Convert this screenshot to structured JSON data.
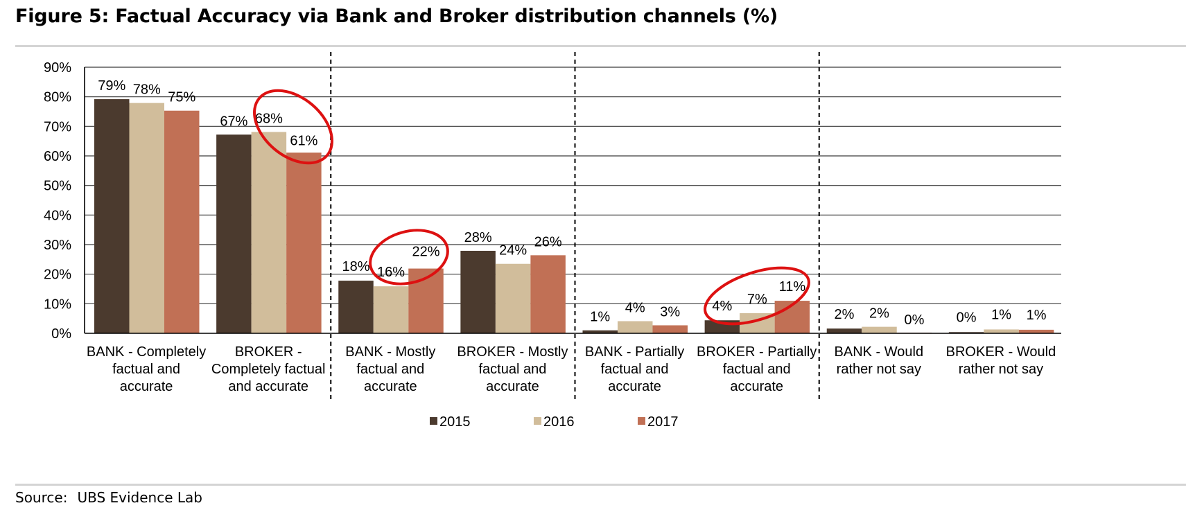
{
  "header": {
    "title": "Figure 5:  Factual Accuracy via Bank and Broker distribution channels (%)"
  },
  "footer": {
    "source_label": "Source:",
    "source_value": "UBS Evidence Lab"
  },
  "colors": {
    "s2015": "#4b3a2e",
    "s2016": "#d1bd9b",
    "s2017": "#c17055",
    "highlight": "#dd1111",
    "grid": "#3a3a3a"
  },
  "chart_data": {
    "type": "bar",
    "title": "Factual Accuracy via Bank and Broker distribution channels (%)",
    "xlabel": "",
    "ylabel": "",
    "ylim": [
      0,
      90
    ],
    "yticks": [
      "0%",
      "10%",
      "20%",
      "30%",
      "40%",
      "50%",
      "60%",
      "70%",
      "80%",
      "90%"
    ],
    "categories": [
      [
        "BANK - Completely",
        "factual and",
        "accurate"
      ],
      [
        "BROKER -",
        "Completely factual",
        "and accurate"
      ],
      [
        "BANK - Mostly",
        "factual and",
        "accurate"
      ],
      [
        "BROKER - Mostly",
        "factual and",
        "accurate"
      ],
      [
        "BANK - Partially",
        "factual and",
        "accurate"
      ],
      [
        "BROKER - Partially",
        "factual and",
        "accurate"
      ],
      [
        "BANK - Would",
        "rather not say"
      ],
      [
        "BROKER - Would",
        "rather not say"
      ]
    ],
    "series": [
      {
        "name": "2015",
        "values": [
          79,
          67,
          18,
          28,
          1,
          4,
          2,
          0
        ],
        "plot_values": [
          79.2,
          67.2,
          17.8,
          27.9,
          1.0,
          4.4,
          1.6,
          0.4
        ]
      },
      {
        "name": "2016",
        "values": [
          78,
          68,
          16,
          24,
          4,
          7,
          2,
          1
        ],
        "plot_values": [
          77.9,
          68.1,
          15.9,
          23.5,
          4.1,
          6.8,
          2.2,
          1.3
        ]
      },
      {
        "name": "2017",
        "values": [
          75,
          61,
          22,
          26,
          3,
          11,
          0,
          1
        ],
        "plot_values": [
          75.3,
          61.1,
          21.9,
          26.4,
          2.7,
          11.0,
          0.2,
          1.2
        ]
      }
    ],
    "data_labels": [
      [
        "79%",
        "78%",
        "75%"
      ],
      [
        "67%",
        "68%",
        "61%"
      ],
      [
        "18%",
        "16%",
        "22%"
      ],
      [
        "28%",
        "24%",
        "26%"
      ],
      [
        "1%",
        "4%",
        "3%"
      ],
      [
        "4%",
        "7%",
        "11%"
      ],
      [
        "2%",
        "2%",
        "0%"
      ],
      [
        "0%",
        "1%",
        "1%"
      ]
    ],
    "group_separators_after": [
      1,
      3,
      5
    ],
    "highlighted_groups": [
      1,
      2,
      5
    ],
    "legend": [
      "2015",
      "2016",
      "2017"
    ],
    "legend_position": "bottom-center",
    "grid": true
  }
}
